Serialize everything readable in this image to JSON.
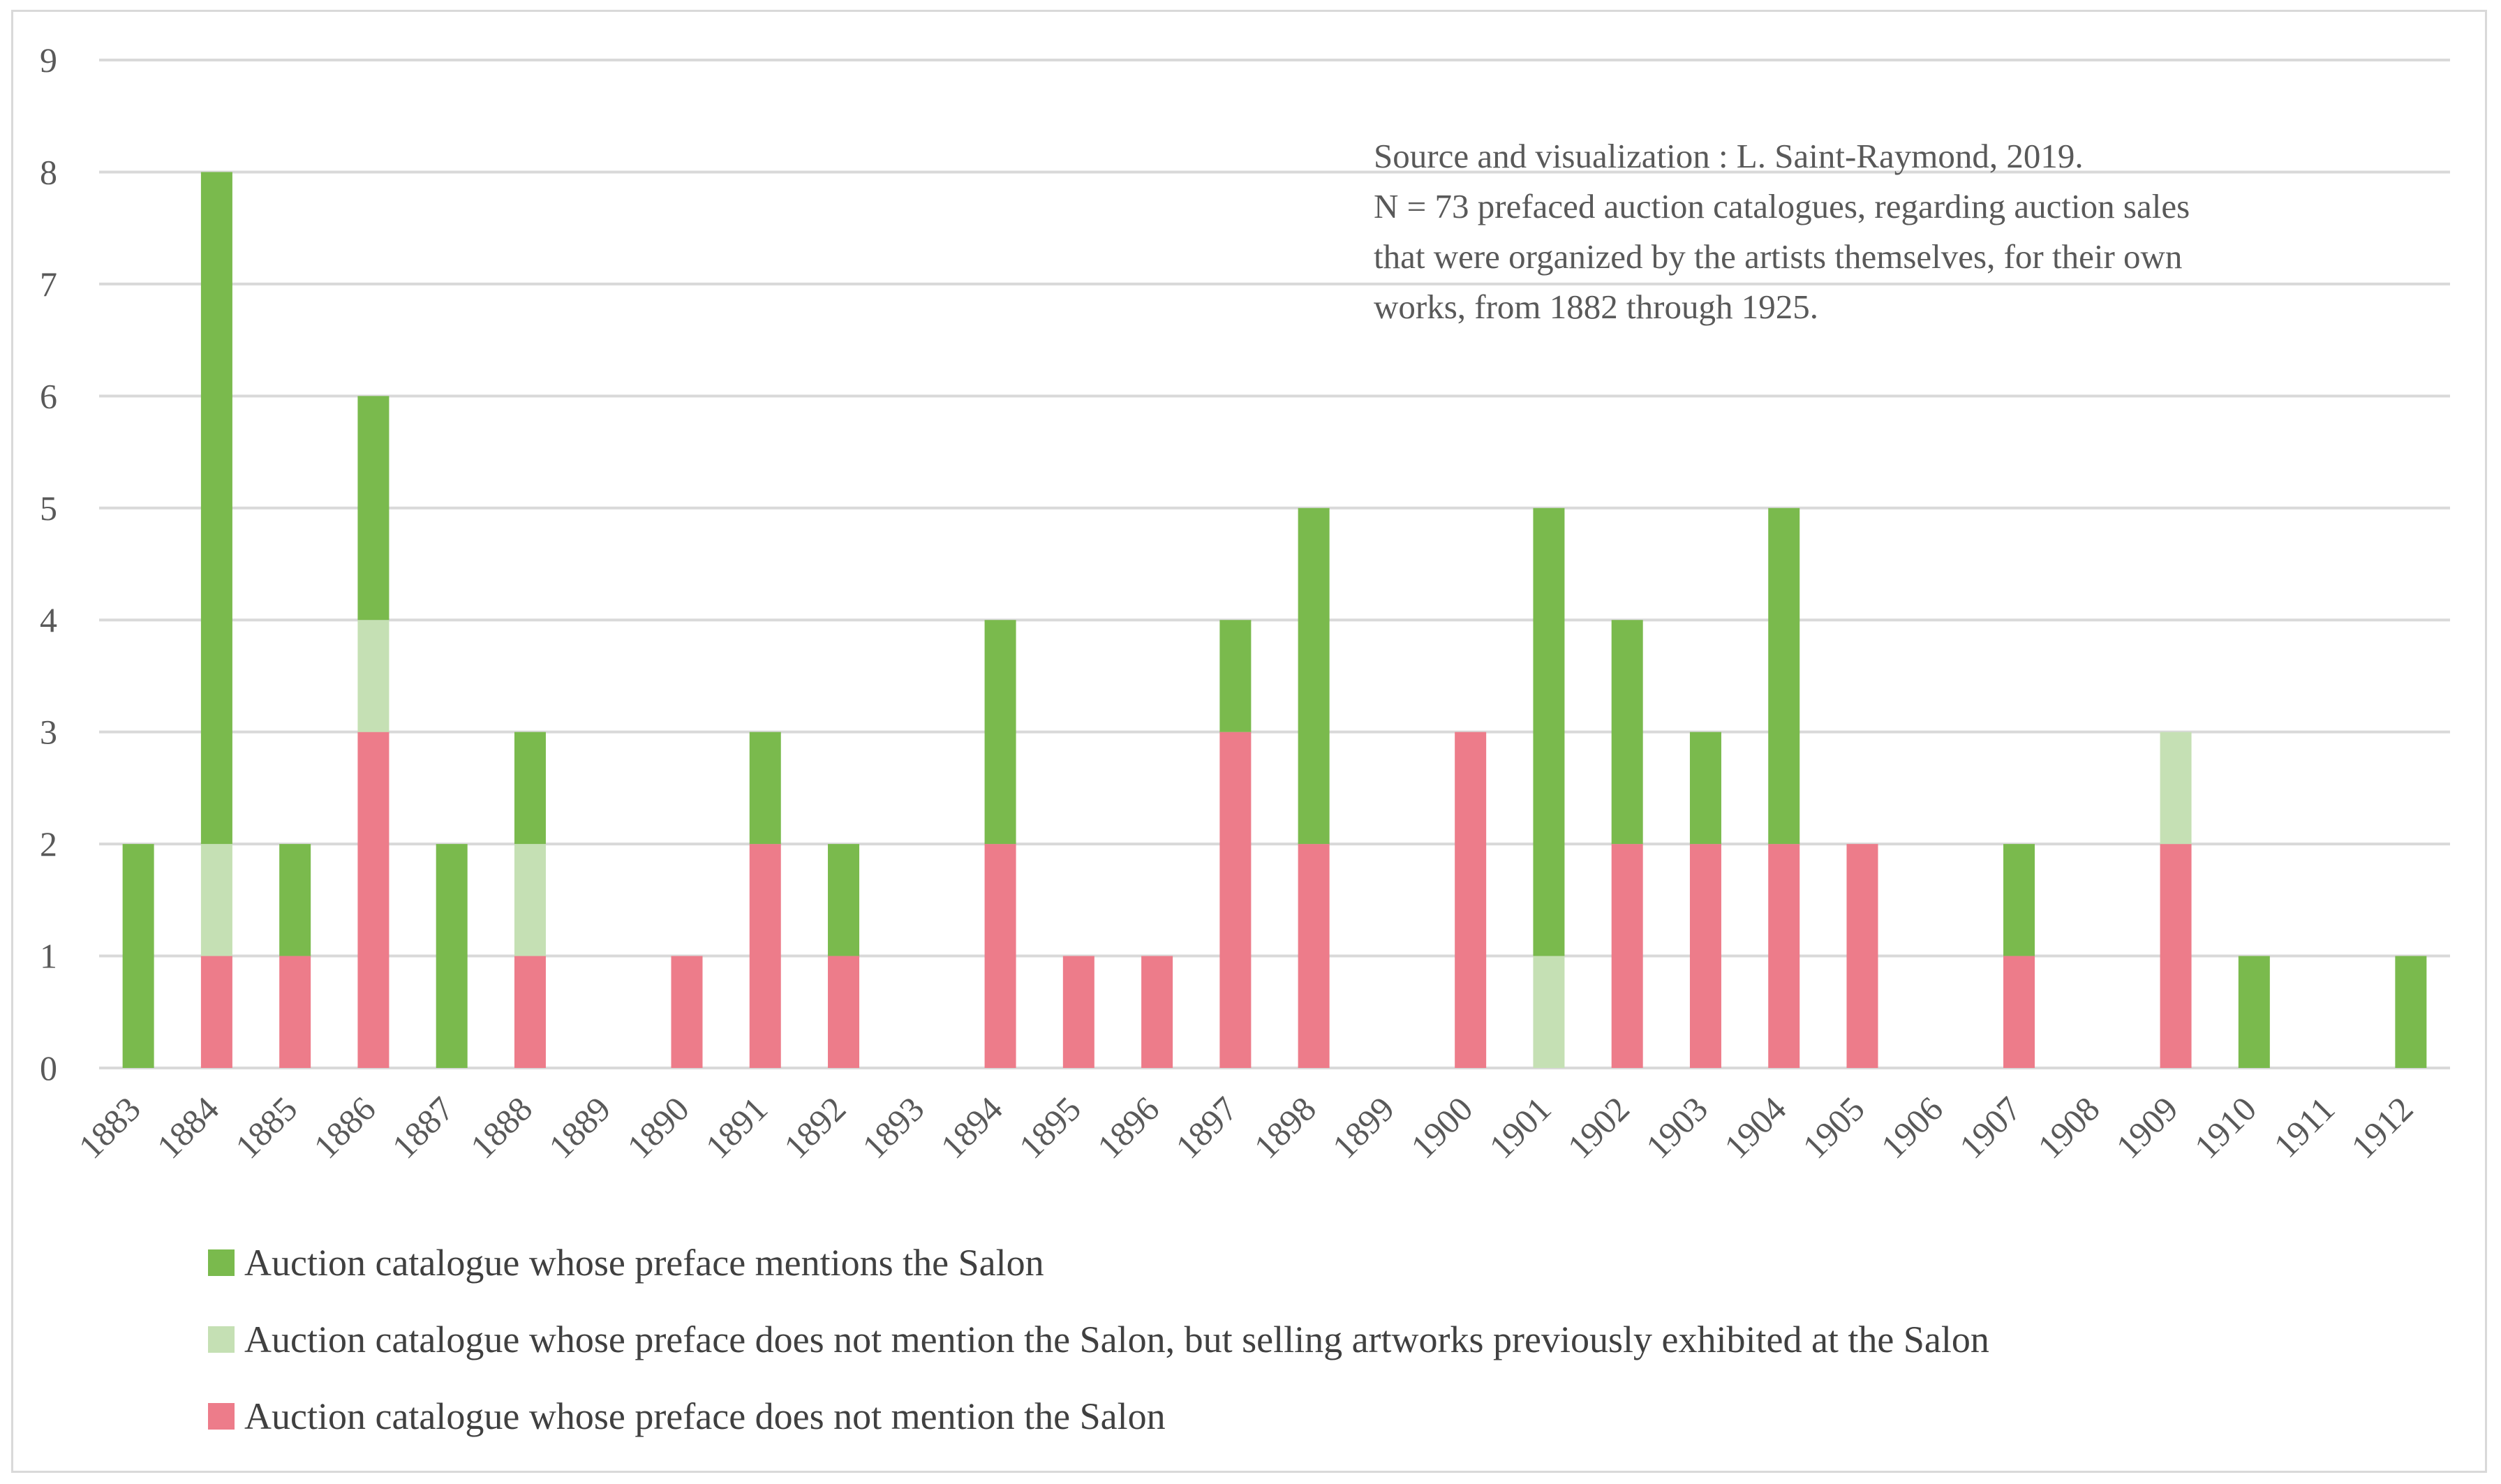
{
  "chart_data": {
    "type": "bar",
    "stacked": true,
    "categories": [
      "1883",
      "1884",
      "1885",
      "1886",
      "1887",
      "1888",
      "1889",
      "1890",
      "1891",
      "1892",
      "1893",
      "1894",
      "1895",
      "1896",
      "1897",
      "1898",
      "1899",
      "1900",
      "1901",
      "1902",
      "1903",
      "1904",
      "1905",
      "1906",
      "1907",
      "1908",
      "1909",
      "1910",
      "1911",
      "1912"
    ],
    "series": [
      {
        "name": "Auction catalogue whose preface does not mention the Salon",
        "color": "#ed7c8a",
        "values": [
          0,
          1,
          1,
          3,
          0,
          1,
          0,
          1,
          2,
          1,
          0,
          2,
          1,
          1,
          3,
          2,
          0,
          3,
          0,
          2,
          2,
          2,
          2,
          0,
          1,
          0,
          2,
          0,
          0,
          0
        ]
      },
      {
        "name": "Auction catalogue whose preface does not mention the Salon, but selling artworks previously exhibited at the Salon",
        "color": "#c5e0b4",
        "values": [
          0,
          1,
          0,
          1,
          0,
          1,
          0,
          0,
          0,
          0,
          0,
          0,
          0,
          0,
          0,
          0,
          0,
          0,
          1,
          0,
          0,
          0,
          0,
          0,
          0,
          0,
          1,
          0,
          0,
          0
        ]
      },
      {
        "name": "Auction catalogue whose preface mentions the Salon",
        "color": "#7aba4d",
        "values": [
          2,
          6,
          1,
          2,
          2,
          1,
          0,
          0,
          1,
          1,
          0,
          2,
          0,
          0,
          1,
          3,
          0,
          0,
          4,
          2,
          1,
          3,
          0,
          0,
          1,
          0,
          0,
          1,
          0,
          1
        ]
      }
    ],
    "yticks": [
      "0",
      "1",
      "2",
      "3",
      "4",
      "5",
      "6",
      "7",
      "8",
      "9"
    ],
    "ylim": [
      0,
      9
    ],
    "title": "",
    "xlabel": "",
    "ylabel": "",
    "grid": true,
    "legend": {
      "position": "bottom-left",
      "items": [
        {
          "label": "Auction catalogue whose preface mentions the Salon",
          "color": "#7aba4d"
        },
        {
          "label": "Auction catalogue whose preface does not mention the Salon, but selling artworks previously exhibited at the Salon",
          "color": "#c5e0b4"
        },
        {
          "label": "Auction catalogue whose preface does not mention the Salon",
          "color": "#ed7c8a"
        }
      ]
    },
    "annotation": [
      "Source and visualization : L. Saint-Raymond, 2019.",
      "N = 73 prefaced auction catalogues, regarding auction sales",
      "that were organized by the artists themselves, for their own",
      "works, from 1882 through 1925."
    ]
  }
}
